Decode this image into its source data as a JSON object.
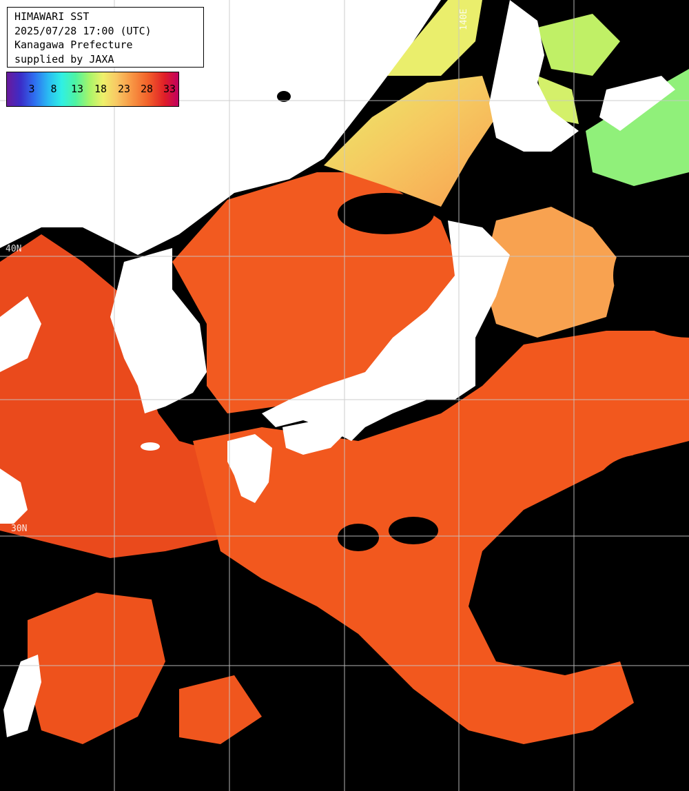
{
  "header": {
    "title": "HIMAWARI SST",
    "datetime": "2025/07/28 17:00 (UTC)",
    "region": "Kanagawa Prefecture",
    "credit": "supplied by JAXA"
  },
  "legend": {
    "ticks": [
      "3",
      "8",
      "13",
      "18",
      "23",
      "28",
      "33"
    ]
  },
  "grid_labels": {
    "lon_140": "140E",
    "lat_40": "40N",
    "lat_30": "30N"
  },
  "colors": {
    "land": "#ffffff",
    "cloud": "#000000",
    "warm_sea": "#f2501e",
    "hot_sea": "#e03a18",
    "mild_sea": "#f8a050",
    "cool_sea": "#c8f060",
    "cold_sea": "#88f078",
    "grid": "#c8c8c8"
  }
}
